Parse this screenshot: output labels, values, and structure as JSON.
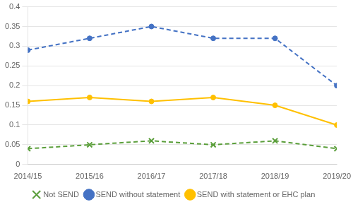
{
  "chart_data": {
    "type": "line",
    "categories": [
      "2014/15",
      "2015/16",
      "2016/17",
      "2017/18",
      "2018/19",
      "2019/20"
    ],
    "series": [
      {
        "name": "Not SEND",
        "color": "#5a9e3a",
        "marker": "x",
        "line_style": "dashed",
        "values": [
          0.04,
          0.05,
          0.06,
          0.05,
          0.06,
          0.04
        ]
      },
      {
        "name": "SEND without statement",
        "color": "#4472c4",
        "marker": "circle",
        "line_style": "dashed",
        "values": [
          0.29,
          0.32,
          0.35,
          0.32,
          0.32,
          0.2
        ]
      },
      {
        "name": "SEND with statement or EHC plan",
        "color": "#ffc000",
        "marker": "circle",
        "line_style": "solid",
        "values": [
          0.16,
          0.17,
          0.16,
          0.17,
          0.15,
          0.1
        ]
      }
    ],
    "ylim": [
      0,
      0.4
    ],
    "yticks": [
      0,
      0.05,
      0.1,
      0.15,
      0.2,
      0.25,
      0.3,
      0.35,
      0.4
    ],
    "grid": "y",
    "legend": "bottom"
  }
}
